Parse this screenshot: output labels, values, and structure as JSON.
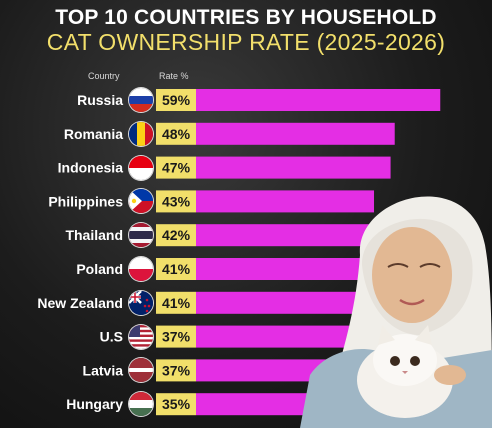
{
  "title": {
    "line1": "TOP 10 COUNTRIES BY HOUSEHOLD",
    "line2": "CAT OWNERSHIP RATE (2025-2026)"
  },
  "headers": {
    "country": "Country",
    "rate": "Rate %"
  },
  "colors": {
    "bar": "#e42ee4",
    "rate_box": "#f1df6a",
    "title_accent": "#f2df6b"
  },
  "chart_data": {
    "type": "bar",
    "orientation": "horizontal",
    "categories": [
      "Russia",
      "Romania",
      "Indonesia",
      "Philippines",
      "Thailand",
      "Poland",
      "New Zealand",
      "U.S",
      "Latvia",
      "Hungary"
    ],
    "values": [
      59,
      48,
      47,
      43,
      42,
      41,
      41,
      37,
      37,
      35
    ],
    "value_labels": [
      "59%",
      "48%",
      "47%",
      "43%",
      "42%",
      "41%",
      "41%",
      "37%",
      "37%",
      "35%"
    ],
    "flags": [
      "russia-flag-icon",
      "romania-flag-icon",
      "indonesia-flag-icon",
      "philippines-flag-icon",
      "thailand-flag-icon",
      "poland-flag-icon",
      "new-zealand-flag-icon",
      "us-flag-icon",
      "latvia-flag-icon",
      "hungary-flag-icon"
    ],
    "title": "TOP 10 COUNTRIES BY HOUSEHOLD CAT OWNERSHIP RATE (2025-2026)",
    "xlabel": "Rate %",
    "ylabel": "Country",
    "grid": false,
    "legend": "none"
  }
}
